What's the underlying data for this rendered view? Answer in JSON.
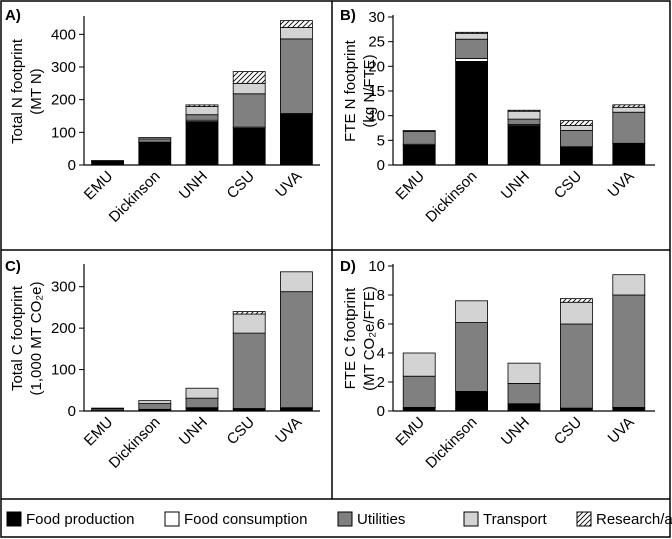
{
  "legend": {
    "categories": [
      "Food production",
      "Food consumption",
      "Utilities",
      "Transport",
      "Research/agriculture"
    ],
    "fills": [
      "#000000",
      "#ffffff",
      "#808080",
      "#d3d3d3",
      "hatch"
    ]
  },
  "chart_data": [
    {
      "panel": "A)",
      "type": "bar",
      "stacked": true,
      "ylabel_lines": [
        "Total N footprint",
        "(MT N)"
      ],
      "categories": [
        "EMU",
        "Dickinson",
        "UNH",
        "CSU",
        "UVA"
      ],
      "ylim": [
        0,
        450
      ],
      "yticks": [
        0,
        100,
        200,
        300,
        400
      ],
      "series": [
        {
          "name": "Food production",
          "values": [
            12,
            68,
            133,
            113,
            155
          ]
        },
        {
          "name": "Food consumption",
          "values": [
            0.5,
            2,
            4,
            3,
            3
          ]
        },
        {
          "name": "Utilities",
          "values": [
            0.5,
            10,
            17,
            102,
            228
          ]
        },
        {
          "name": "Transport",
          "values": [
            0.5,
            4,
            25,
            32,
            35
          ]
        },
        {
          "name": "Research/agriculture",
          "values": [
            0,
            0,
            5,
            36,
            21
          ]
        }
      ]
    },
    {
      "panel": "B)",
      "type": "bar",
      "stacked": true,
      "ylabel_lines": [
        "FTE N footprint",
        "(kg N/FTE)"
      ],
      "categories": [
        "EMU",
        "Dickinson",
        "UNH",
        "CSU",
        "UVA"
      ],
      "ylim": [
        0,
        30
      ],
      "yticks": [
        0,
        5,
        10,
        15,
        20,
        25,
        30
      ],
      "series": [
        {
          "name": "Food production",
          "values": [
            4.0,
            21.0,
            8.0,
            3.6,
            4.3
          ]
        },
        {
          "name": "Food consumption",
          "values": [
            0.2,
            0.6,
            0.2,
            0.1,
            0.1
          ]
        },
        {
          "name": "Utilities",
          "values": [
            2.6,
            3.9,
            1.1,
            3.3,
            6.3
          ]
        },
        {
          "name": "Transport",
          "values": [
            0.2,
            1.2,
            1.6,
            1.0,
            1.0
          ]
        },
        {
          "name": "Research/agriculture",
          "values": [
            0,
            0.2,
            0.2,
            1.0,
            0.5
          ]
        }
      ]
    },
    {
      "panel": "C)",
      "type": "bar",
      "stacked": true,
      "ylabel_lines": [
        "Total C footprint",
        "(1,000 MT CO₂e)"
      ],
      "categories": [
        "EMU",
        "Dickinson",
        "UNH",
        "CSU",
        "UVA"
      ],
      "ylim": [
        0,
        350
      ],
      "yticks": [
        0,
        100,
        200,
        300
      ],
      "series": [
        {
          "name": "Food production",
          "values": [
            1,
            4,
            8,
            6,
            8
          ]
        },
        {
          "name": "Food consumption",
          "values": [
            0,
            0,
            0,
            0,
            0
          ]
        },
        {
          "name": "Utilities",
          "values": [
            4,
            14,
            23,
            182,
            280
          ]
        },
        {
          "name": "Transport",
          "values": [
            2,
            7,
            24,
            46,
            48
          ]
        },
        {
          "name": "Research/agriculture",
          "values": [
            0,
            0,
            0,
            6,
            0
          ]
        }
      ]
    },
    {
      "panel": "D)",
      "type": "bar",
      "stacked": true,
      "ylabel_lines": [
        "FTE C footprint",
        "(MT CO₂e/FTE)"
      ],
      "categories": [
        "EMU",
        "Dickinson",
        "UNH",
        "CSU",
        "UVA"
      ],
      "ylim": [
        0,
        10
      ],
      "yticks": [
        0,
        2,
        4,
        6,
        8,
        10
      ],
      "series": [
        {
          "name": "Food production",
          "values": [
            0.25,
            1.35,
            0.5,
            0.2,
            0.25
          ]
        },
        {
          "name": "Food consumption",
          "values": [
            0,
            0,
            0,
            0,
            0
          ]
        },
        {
          "name": "Utilities",
          "values": [
            2.15,
            4.75,
            1.4,
            5.8,
            7.75
          ]
        },
        {
          "name": "Transport",
          "values": [
            1.6,
            1.5,
            1.4,
            1.5,
            1.4
          ]
        },
        {
          "name": "Research/agriculture",
          "values": [
            0,
            0,
            0,
            0.25,
            0
          ]
        }
      ]
    }
  ]
}
